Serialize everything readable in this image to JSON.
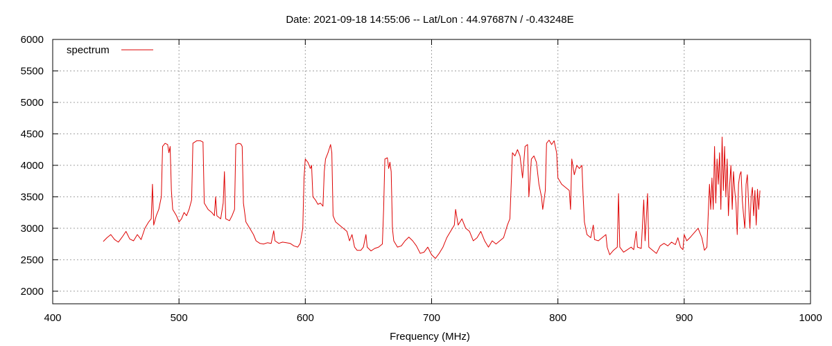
{
  "chart_data": {
    "type": "line",
    "title": "Date: 2021-09-18 14:55:06  --  Lat/Lon : 44.97687N / -0.43248E",
    "xlabel": "Frequency (MHz)",
    "ylabel": "",
    "xlim": [
      400,
      1000
    ],
    "ylim": [
      1800,
      6000
    ],
    "xticks": [
      400,
      500,
      600,
      700,
      800,
      900,
      1000
    ],
    "yticks": [
      2000,
      2500,
      3000,
      3500,
      4000,
      4500,
      5000,
      5500,
      6000
    ],
    "grid": true,
    "legend": "top-left",
    "series": [
      {
        "name": "spectrum",
        "color": "#dd0000",
        "points": [
          [
            440,
            2790
          ],
          [
            443,
            2850
          ],
          [
            446,
            2900
          ],
          [
            449,
            2820
          ],
          [
            452,
            2780
          ],
          [
            455,
            2860
          ],
          [
            458,
            2950
          ],
          [
            461,
            2830
          ],
          [
            464,
            2800
          ],
          [
            467,
            2900
          ],
          [
            470,
            2820
          ],
          [
            473,
            3000
          ],
          [
            476,
            3100
          ],
          [
            478,
            3150
          ],
          [
            479,
            3700
          ],
          [
            480,
            3050
          ],
          [
            482,
            3200
          ],
          [
            484,
            3300
          ],
          [
            486,
            3500
          ],
          [
            487,
            4300
          ],
          [
            489,
            4350
          ],
          [
            491,
            4330
          ],
          [
            492,
            4200
          ],
          [
            493,
            4300
          ],
          [
            494,
            3600
          ],
          [
            495,
            3300
          ],
          [
            498,
            3200
          ],
          [
            500,
            3100
          ],
          [
            502,
            3150
          ],
          [
            504,
            3250
          ],
          [
            506,
            3200
          ],
          [
            508,
            3300
          ],
          [
            510,
            3450
          ],
          [
            511,
            4350
          ],
          [
            514,
            4390
          ],
          [
            517,
            4390
          ],
          [
            519,
            4370
          ],
          [
            520,
            3400
          ],
          [
            523,
            3300
          ],
          [
            526,
            3250
          ],
          [
            528,
            3200
          ],
          [
            529,
            3500
          ],
          [
            530,
            3200
          ],
          [
            533,
            3150
          ],
          [
            535,
            3400
          ],
          [
            536,
            3900
          ],
          [
            537,
            3150
          ],
          [
            540,
            3120
          ],
          [
            542,
            3200
          ],
          [
            544,
            3300
          ],
          [
            545,
            4330
          ],
          [
            547,
            4350
          ],
          [
            549,
            4340
          ],
          [
            550,
            4300
          ],
          [
            551,
            3400
          ],
          [
            553,
            3100
          ],
          [
            556,
            3000
          ],
          [
            559,
            2900
          ],
          [
            561,
            2800
          ],
          [
            564,
            2760
          ],
          [
            567,
            2750
          ],
          [
            570,
            2770
          ],
          [
            573,
            2760
          ],
          [
            575,
            2960
          ],
          [
            576,
            2800
          ],
          [
            579,
            2760
          ],
          [
            582,
            2780
          ],
          [
            585,
            2770
          ],
          [
            588,
            2760
          ],
          [
            591,
            2720
          ],
          [
            594,
            2700
          ],
          [
            596,
            2760
          ],
          [
            598,
            3000
          ],
          [
            599,
            3800
          ],
          [
            600,
            4100
          ],
          [
            602,
            4050
          ],
          [
            604,
            3950
          ],
          [
            605,
            4000
          ],
          [
            606,
            3500
          ],
          [
            608,
            3450
          ],
          [
            610,
            3380
          ],
          [
            612,
            3400
          ],
          [
            614,
            3350
          ],
          [
            615,
            3900
          ],
          [
            616,
            4100
          ],
          [
            618,
            4200
          ],
          [
            620,
            4330
          ],
          [
            621,
            4200
          ],
          [
            622,
            3200
          ],
          [
            624,
            3100
          ],
          [
            627,
            3050
          ],
          [
            630,
            3000
          ],
          [
            633,
            2950
          ],
          [
            635,
            2800
          ],
          [
            637,
            2900
          ],
          [
            639,
            2700
          ],
          [
            641,
            2650
          ],
          [
            644,
            2650
          ],
          [
            646,
            2700
          ],
          [
            648,
            2900
          ],
          [
            649,
            2700
          ],
          [
            652,
            2640
          ],
          [
            655,
            2680
          ],
          [
            658,
            2700
          ],
          [
            661,
            2750
          ],
          [
            662,
            3300
          ],
          [
            663,
            4100
          ],
          [
            665,
            4120
          ],
          [
            666,
            3950
          ],
          [
            667,
            4050
          ],
          [
            668,
            3900
          ],
          [
            669,
            3000
          ],
          [
            670,
            2800
          ],
          [
            673,
            2700
          ],
          [
            676,
            2720
          ],
          [
            679,
            2800
          ],
          [
            682,
            2860
          ],
          [
            685,
            2800
          ],
          [
            688,
            2720
          ],
          [
            691,
            2600
          ],
          [
            694,
            2620
          ],
          [
            697,
            2700
          ],
          [
            700,
            2580
          ],
          [
            703,
            2520
          ],
          [
            706,
            2600
          ],
          [
            709,
            2700
          ],
          [
            712,
            2850
          ],
          [
            715,
            2950
          ],
          [
            718,
            3050
          ],
          [
            719,
            3300
          ],
          [
            721,
            3050
          ],
          [
            724,
            3150
          ],
          [
            727,
            3000
          ],
          [
            730,
            2950
          ],
          [
            733,
            2800
          ],
          [
            736,
            2850
          ],
          [
            739,
            2950
          ],
          [
            742,
            2800
          ],
          [
            745,
            2700
          ],
          [
            748,
            2800
          ],
          [
            751,
            2750
          ],
          [
            754,
            2800
          ],
          [
            757,
            2850
          ],
          [
            760,
            3050
          ],
          [
            762,
            3150
          ],
          [
            764,
            4200
          ],
          [
            766,
            4150
          ],
          [
            768,
            4250
          ],
          [
            770,
            4150
          ],
          [
            772,
            3800
          ],
          [
            774,
            4300
          ],
          [
            776,
            4330
          ],
          [
            777,
            3500
          ],
          [
            779,
            4100
          ],
          [
            781,
            4150
          ],
          [
            783,
            4050
          ],
          [
            785,
            3700
          ],
          [
            787,
            3500
          ],
          [
            788,
            3300
          ],
          [
            790,
            3600
          ],
          [
            791,
            4350
          ],
          [
            793,
            4400
          ],
          [
            795,
            4330
          ],
          [
            797,
            4390
          ],
          [
            799,
            4200
          ],
          [
            800,
            3800
          ],
          [
            803,
            3700
          ],
          [
            806,
            3650
          ],
          [
            809,
            3600
          ],
          [
            810,
            3300
          ],
          [
            811,
            4100
          ],
          [
            813,
            3850
          ],
          [
            815,
            4000
          ],
          [
            817,
            3950
          ],
          [
            819,
            4000
          ],
          [
            820,
            3500
          ],
          [
            821,
            3100
          ],
          [
            823,
            2900
          ],
          [
            826,
            2850
          ],
          [
            828,
            3050
          ],
          [
            829,
            2820
          ],
          [
            832,
            2800
          ],
          [
            835,
            2850
          ],
          [
            838,
            2900
          ],
          [
            839,
            2700
          ],
          [
            841,
            2580
          ],
          [
            844,
            2650
          ],
          [
            847,
            2700
          ],
          [
            848,
            3550
          ],
          [
            849,
            2700
          ],
          [
            852,
            2620
          ],
          [
            855,
            2660
          ],
          [
            858,
            2700
          ],
          [
            860,
            2660
          ],
          [
            862,
            2950
          ],
          [
            863,
            2700
          ],
          [
            866,
            2680
          ],
          [
            868,
            3450
          ],
          [
            869,
            2800
          ],
          [
            871,
            3550
          ],
          [
            872,
            2700
          ],
          [
            875,
            2650
          ],
          [
            878,
            2600
          ],
          [
            881,
            2720
          ],
          [
            884,
            2760
          ],
          [
            887,
            2720
          ],
          [
            890,
            2780
          ],
          [
            893,
            2740
          ],
          [
            895,
            2850
          ],
          [
            897,
            2700
          ],
          [
            899,
            2660
          ],
          [
            900,
            2900
          ],
          [
            902,
            2800
          ],
          [
            905,
            2860
          ],
          [
            908,
            2930
          ],
          [
            911,
            3000
          ],
          [
            914,
            2850
          ],
          [
            916,
            2650
          ],
          [
            918,
            2700
          ],
          [
            919,
            3200
          ],
          [
            920,
            3700
          ],
          [
            921,
            3300
          ],
          [
            922,
            3800
          ],
          [
            923,
            3300
          ],
          [
            924,
            4300
          ],
          [
            925,
            3400
          ],
          [
            926,
            4100
          ],
          [
            927,
            3700
          ],
          [
            928,
            4200
          ],
          [
            929,
            3300
          ],
          [
            930,
            4450
          ],
          [
            931,
            3600
          ],
          [
            932,
            4300
          ],
          [
            933,
            3500
          ],
          [
            934,
            4100
          ],
          [
            935,
            3200
          ],
          [
            936,
            3700
          ],
          [
            937,
            4000
          ],
          [
            938,
            3300
          ],
          [
            939,
            3900
          ],
          [
            940,
            3600
          ],
          [
            941,
            3400
          ],
          [
            942,
            2900
          ],
          [
            943,
            3700
          ],
          [
            944,
            3850
          ],
          [
            945,
            3900
          ],
          [
            946,
            3450
          ],
          [
            947,
            3200
          ],
          [
            948,
            3000
          ],
          [
            949,
            3700
          ],
          [
            950,
            3850
          ],
          [
            951,
            3400
          ],
          [
            952,
            3000
          ],
          [
            953,
            3500
          ],
          [
            954,
            3650
          ],
          [
            955,
            3200
          ],
          [
            956,
            3600
          ],
          [
            957,
            3050
          ],
          [
            958,
            3620
          ],
          [
            959,
            3300
          ],
          [
            960,
            3600
          ]
        ]
      }
    ]
  }
}
